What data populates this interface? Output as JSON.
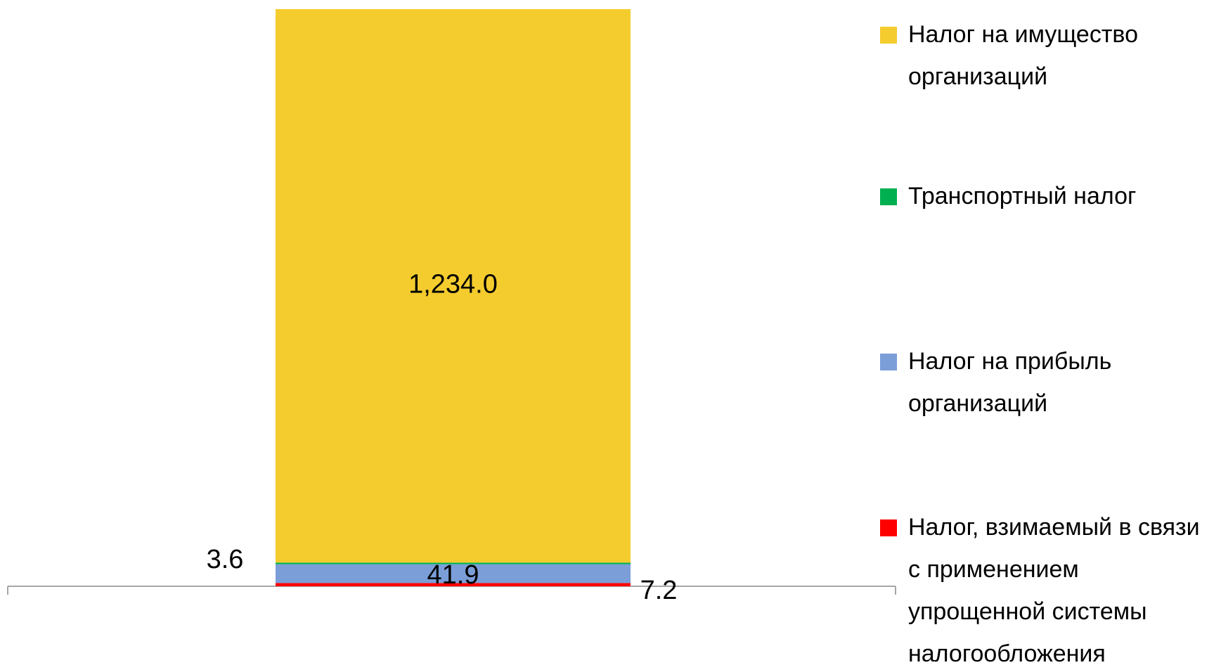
{
  "chart_data": {
    "type": "stacked_bar",
    "categories": [
      null
    ],
    "series": [
      {
        "name": "Налог, взимаемый в связи с применением упрощенной системы налогообложения",
        "color": "#ff0000",
        "values": [
          7.2
        ]
      },
      {
        "name": "Налог на прибыль организаций",
        "color": "#7b9ed9",
        "values": [
          41.9
        ]
      },
      {
        "name": "Транспортный налог",
        "color": "#00b050",
        "values": [
          3.6
        ]
      },
      {
        "name": "Налог на имущество организаций",
        "color": "#f4cc2e",
        "values": [
          1234.0
        ],
        "value_labels": [
          "1,234.0"
        ]
      }
    ],
    "ylim": [
      0,
      1300
    ],
    "legend": "right"
  }
}
